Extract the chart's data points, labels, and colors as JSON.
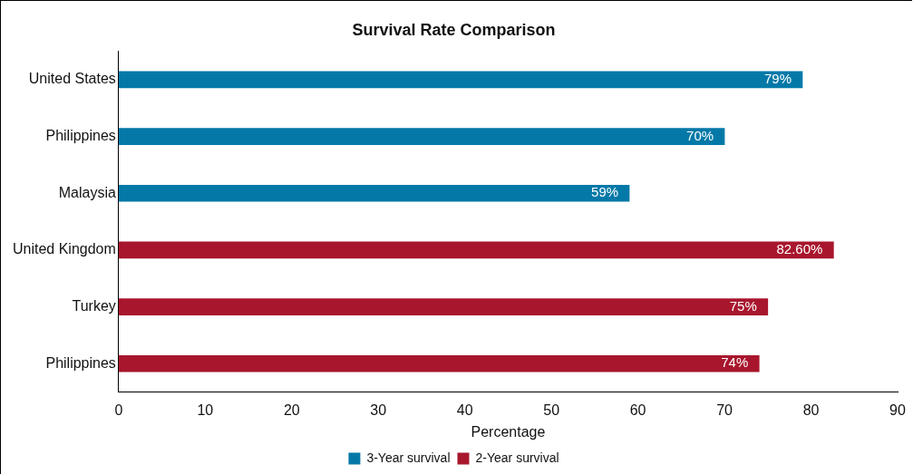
{
  "chart_data": {
    "type": "bar",
    "orientation": "horizontal",
    "title": "Survival Rate Comparison",
    "xlabel": "Percentage",
    "categories": [
      "United States",
      "Philippines",
      "Malaysia",
      "United Kingdom",
      "Turkey",
      "Philippines"
    ],
    "series": [
      {
        "name": "3-Year survival",
        "color": "#0479a8",
        "values": [
          79,
          70,
          59,
          null,
          null,
          null
        ],
        "value_labels": [
          "79%",
          "70%",
          "59%",
          null,
          null,
          null
        ]
      },
      {
        "name": "2-Year survival",
        "color": "#a8162d",
        "values": [
          null,
          null,
          null,
          82.6,
          75,
          74
        ],
        "value_labels": [
          null,
          null,
          null,
          "82.60%",
          "75%",
          "74%"
        ]
      }
    ],
    "xlim": [
      0,
      90
    ],
    "xticks": [
      0,
      10,
      20,
      30,
      40,
      50,
      60,
      70,
      80,
      90
    ],
    "grid": false,
    "legend": "bottom"
  }
}
